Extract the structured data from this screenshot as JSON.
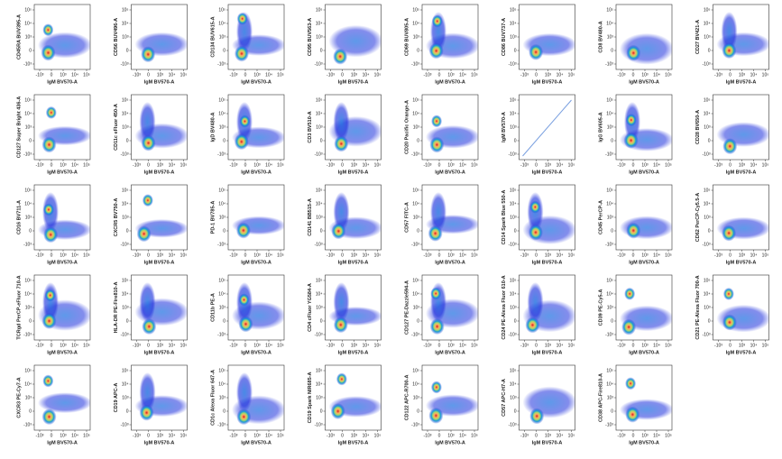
{
  "x_tick_labels": [
    "-10³",
    "0",
    "10³",
    "10⁴",
    "10⁵"
  ],
  "y_tick_labels": [
    "10⁵",
    "10⁴",
    "10³",
    "0",
    "-10³"
  ],
  "panels": [
    {
      "y_label": "CD45RA BUV395-A",
      "x_label": "IgM BV570-A"
    },
    {
      "y_label": "CD56 BUV496-A",
      "x_label": "IgM BV570-A"
    },
    {
      "y_label": "CD134 BUV615-A",
      "x_label": "IgM BV570-A"
    },
    {
      "y_label": "CD95 BUV563-A",
      "x_label": "IgM BV570-A"
    },
    {
      "y_label": "CD69 BUV805-A",
      "x_label": "IgM BV570-A"
    },
    {
      "y_label": "CD86 BUV737-A",
      "x_label": "IgM BV570-A"
    },
    {
      "y_label": "CD8 BV480-A",
      "x_label": "IgM BV570-A"
    },
    {
      "y_label": "CD27 BV421-A",
      "x_label": "IgM BV570-A"
    },
    {
      "y_label": "CD127 Super Bright 436-A",
      "x_label": "IgM BV570-A"
    },
    {
      "y_label": "CD11c eFluor 450-A",
      "x_label": "IgM BV570-A"
    },
    {
      "y_label": "IgD BV480-A",
      "x_label": "IgM BV570-A"
    },
    {
      "y_label": "CD3 BV510-A",
      "x_label": "IgM BV570-A"
    },
    {
      "y_label": "CD20 Pacific Orange-A",
      "x_label": "IgM BV570-A"
    },
    {
      "y_label": "IgM BV570-A",
      "x_label": "IgM BV570-A"
    },
    {
      "y_label": "IgG BV605-A",
      "x_label": "IgM BV570-A"
    },
    {
      "y_label": "CD28 BV650-A",
      "x_label": "IgM BV570-A"
    },
    {
      "y_label": "CD16 BV711-A",
      "x_label": "IgM BV570-A"
    },
    {
      "y_label": "CXCR5 BV750-A",
      "x_label": "IgM BV570-A"
    },
    {
      "y_label": "PD-1 BV785-A",
      "x_label": "IgM BV570-A"
    },
    {
      "y_label": "CD141 BB515-A",
      "x_label": "IgM BV570-A"
    },
    {
      "y_label": "CD57 FITC-A",
      "x_label": "IgM BV570-A"
    },
    {
      "y_label": "CD14 Spark Blue 550-A",
      "x_label": "IgM BV570-A"
    },
    {
      "y_label": "CD45 PerCP-A",
      "x_label": "IgM BV570-A"
    },
    {
      "y_label": "CD62 PerCP-Cy5.5-A",
      "x_label": "IgM BV570-A"
    },
    {
      "y_label": "TCRgd PerCP-eFluor 710-A",
      "x_label": "IgM BV570-A"
    },
    {
      "y_label": "HLA-DR PE-Fire810-A",
      "x_label": "IgM BV570-A"
    },
    {
      "y_label": "CD11b PE-A",
      "x_label": "IgM BV570-A"
    },
    {
      "y_label": "CD4 cFluor YG584-A",
      "x_label": "IgM BV570-A"
    },
    {
      "y_label": "CD127 PE-Dazzle594-A",
      "x_label": "IgM BV570-A"
    },
    {
      "y_label": "CD24 PE-Alexa Fluor 610-A",
      "x_label": "IgM BV570-A"
    },
    {
      "y_label": "CD39 PE-Cy5-A",
      "x_label": "IgM BV570-A"
    },
    {
      "y_label": "CD21 PE-Alexa Fluor 700-A",
      "x_label": "IgM BV570-A"
    },
    {
      "y_label": "CXCR3 PE-Cy7-A",
      "x_label": "IgM BV570-A"
    },
    {
      "y_label": "CD19 APC-A",
      "x_label": "IgM BV570-A"
    },
    {
      "y_label": "CD1c Alexa Fluor 647-A",
      "x_label": "IgM BV570-A"
    },
    {
      "y_label": "CD19 Spark NIR685-A",
      "x_label": "IgM BV570-A"
    },
    {
      "y_label": "CD122 APC-R700-A",
      "x_label": "IgM BV570-A"
    },
    {
      "y_label": "CD57 APC-H7-A",
      "x_label": "IgM BV570-A"
    },
    {
      "y_label": "CD38 APC-Fire810-A",
      "x_label": "IgM BV570-A"
    }
  ]
}
